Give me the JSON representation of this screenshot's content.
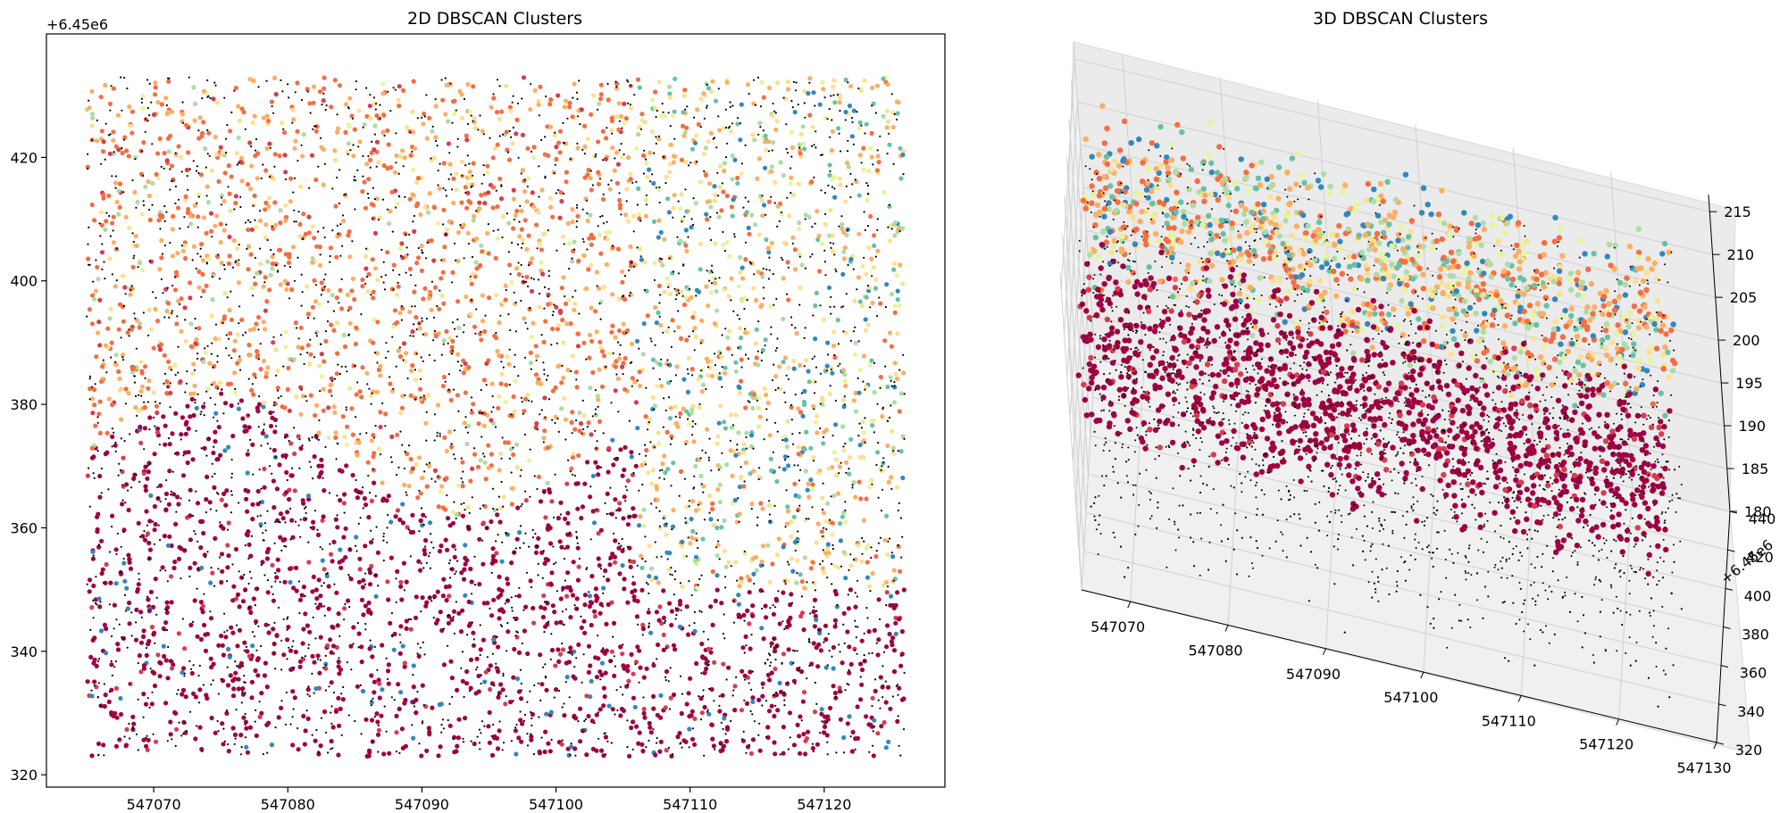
{
  "palette": {
    "noise": "#000000",
    "clusters": [
      "#9e0142",
      "#d53e4f",
      "#f46d43",
      "#fdae61",
      "#fee08b",
      "#e6f598",
      "#abdda4",
      "#66c2a5",
      "#3288bd",
      "#5e4fa2"
    ]
  },
  "chart_data": [
    {
      "type": "scatter",
      "title": "2D DBSCAN Clusters",
      "xlabel": "",
      "ylabel": "",
      "offset_label": "+6.45e6",
      "xlim": [
        547062,
        547129
      ],
      "ylim": [
        318,
        440
      ],
      "x_ticks": [
        547070,
        547080,
        547090,
        547100,
        547110,
        547120
      ],
      "y_ticks": [
        320,
        340,
        360,
        380,
        400,
        420
      ],
      "data_extent": {
        "x": [
          547065,
          547126
        ],
        "y": [
          323,
          433
        ]
      },
      "grid": false,
      "legend": "none",
      "regions": [
        {
          "name": "south",
          "y_range": [
            323,
            388
          ],
          "dominant_cluster": 0
        },
        {
          "name": "north",
          "y_range": [
            370,
            433
          ],
          "dominant_cluster": 2
        },
        {
          "name": "east",
          "x_range": [
            547105,
            547126
          ],
          "mixed_clusters": [
            3,
            4,
            6,
            7,
            8
          ]
        }
      ]
    },
    {
      "type": "scatter",
      "title": "3D DBSCAN Clusters",
      "offset_label": "+6.45e6",
      "xlim": [
        547065,
        547130
      ],
      "ylim": [
        320,
        440
      ],
      "zlim": [
        180,
        217
      ],
      "x_ticks": [
        547070,
        547080,
        547090,
        547100,
        547110,
        547120,
        547130
      ],
      "y_ticks": [
        320,
        340,
        360,
        380,
        400,
        420,
        440
      ],
      "z_ticks": [
        180,
        185,
        190,
        195,
        200,
        205,
        210,
        215
      ],
      "grid": true,
      "legend": "none"
    }
  ]
}
